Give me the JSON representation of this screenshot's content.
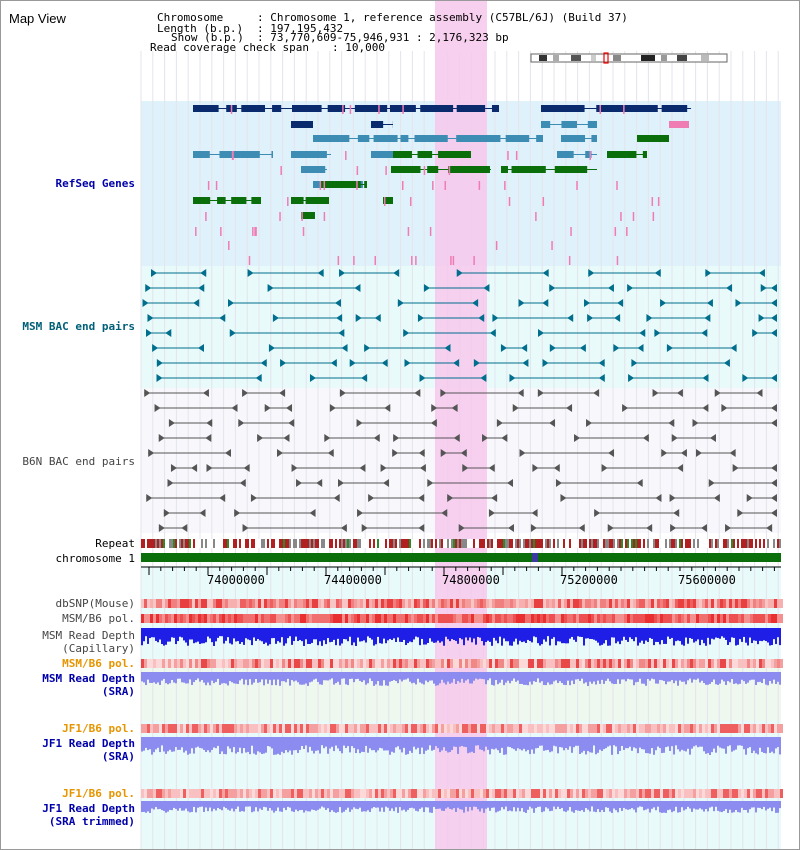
{
  "page": {
    "title": "Map View"
  },
  "header": {
    "chromosome_key": "Chromosome",
    "chromosome_value": ": Chromosome 1, reference assembly (C57BL/6J) (Build 37)",
    "length_key": "Length (b.p.)",
    "length_value": ": 197,195,432",
    "show_key": "Show (b.p.)",
    "show_value": ": 73,770,609-75,946,931 : 2,176,323 bp",
    "coverage_key": "Read coverage check span",
    "coverage_value": ": 10,000"
  },
  "tracks": {
    "refseq": "RefSeq Genes",
    "msm_bac": "MSM BAC end pairs",
    "b6n_bac": "B6N BAC end pairs",
    "repeat": "Repeat",
    "chromosome": "chromosome 1",
    "dbsnp": "dbSNP(Mouse)",
    "msm_b6_pol_1": "MSM/B6 pol.",
    "msm_depth_cap_1": "MSM Read Depth",
    "msm_depth_cap_2": "(Capillary)",
    "msm_b6_pol_2": "MSM/B6 pol.",
    "msm_depth_sra_1": "MSM Read Depth",
    "msm_depth_sra_2": "(SRA)",
    "jf1_b6_pol_1": "JF1/B6 pol.",
    "jf1_depth_sra_1": "JF1 Read Depth",
    "jf1_depth_sra_2": "(SRA)",
    "jf1_b6_pol_2": "JF1/B6 pol.",
    "jf1_depth_trim_1": "JF1 Read Depth",
    "jf1_depth_trim_2": "(SRA trimmed)"
  },
  "axis": {
    "ticks": [
      "74000000",
      "74400000",
      "74800000",
      "75200000",
      "75600000"
    ]
  },
  "colors": {
    "refseq_bg": "#dff1fb",
    "msm_bg": "#e8fafa",
    "highlight": "#f7c8ec",
    "gene_dark": "#0a2a6e",
    "gene_mid": "#3c8cb4",
    "gene_green": "#0a6e0a",
    "gene_pink": "#f07cb4",
    "bac_teal": "#006e8c",
    "bac_gray": "#555555",
    "chrom_green": "#0a6e0a",
    "snp_red": "#e8383c",
    "depth_blue": "#1e1ee6",
    "depth_light": "#8c8cf0"
  }
}
